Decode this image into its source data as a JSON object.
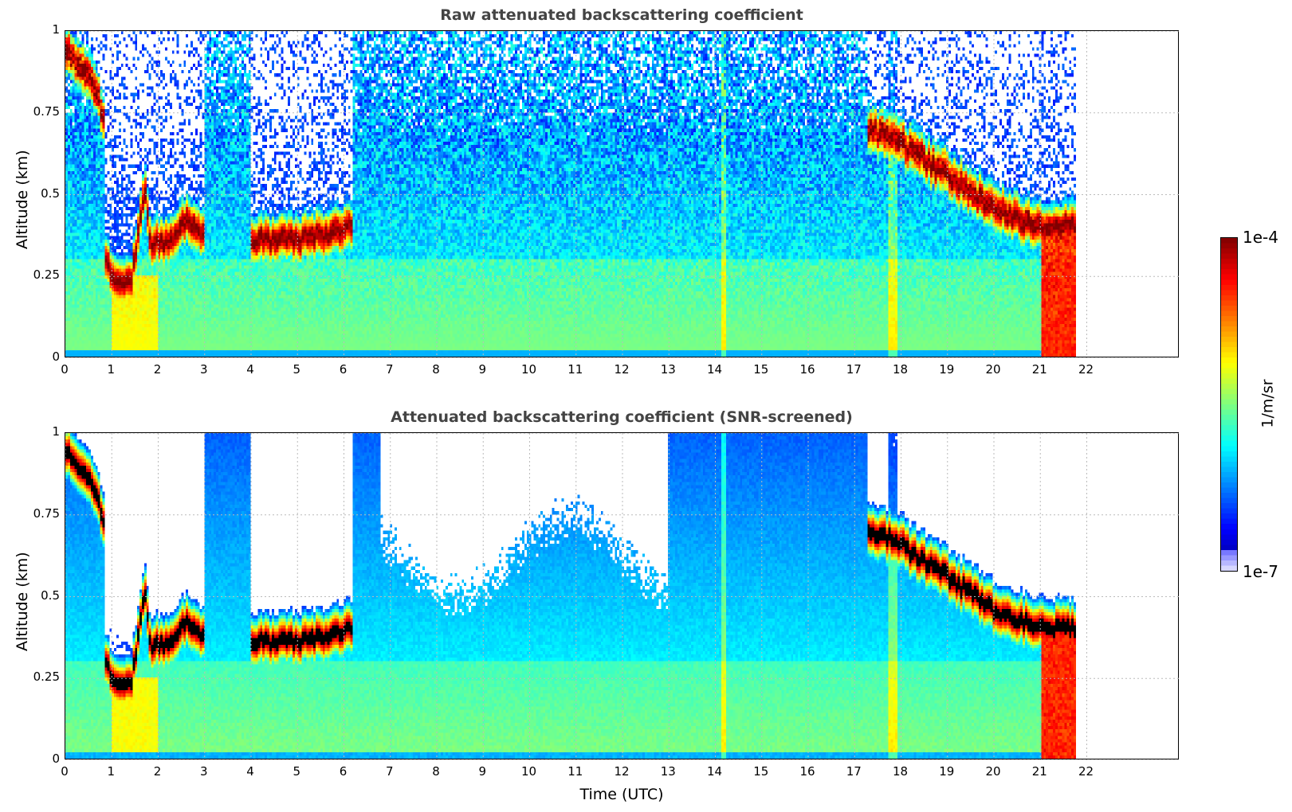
{
  "chart_data": {
    "type": "heatmap",
    "xlabel": "Time (UTC)",
    "ylabel": "Altitude (km)",
    "xlim": [
      0,
      24
    ],
    "ylim": [
      0,
      1
    ],
    "xticks": [
      "0",
      "1",
      "2",
      "3",
      "4",
      "5",
      "6",
      "7",
      "8",
      "9",
      "10",
      "11",
      "12",
      "13",
      "14",
      "15",
      "16",
      "17",
      "18",
      "19",
      "20",
      "21",
      "22"
    ],
    "yticks": [
      "0",
      "0.25",
      "0.5",
      "0.75",
      "1"
    ],
    "grid": true,
    "colorbar": {
      "label": "1/m/sr",
      "min_label": "1e-7",
      "max_label": "1e-4",
      "scale": "log",
      "colormap": "jet"
    },
    "data_end_hour": 21.8,
    "panels": [
      {
        "title": "Raw attenuated backscattering coefficient",
        "screened": false
      },
      {
        "title": "Attenuated backscattering coefficient (SNR-screened)",
        "screened": true
      }
    ],
    "cloud_layers_km": [
      {
        "name": "early-high-layer",
        "points": [
          [
            0,
            0.95
          ],
          [
            0.4,
            0.88
          ],
          [
            0.7,
            0.8
          ],
          [
            0.85,
            0.7
          ]
        ]
      },
      {
        "name": "morning-low-layer",
        "points": [
          [
            0.85,
            0.3
          ],
          [
            1.0,
            0.25
          ],
          [
            1.4,
            0.22
          ],
          [
            1.55,
            0.35
          ],
          [
            1.7,
            0.52
          ],
          [
            1.85,
            0.35
          ],
          [
            2.2,
            0.35
          ],
          [
            2.6,
            0.42
          ],
          [
            3.0,
            0.38
          ]
        ]
      },
      {
        "name": "midmorning-layer",
        "points": [
          [
            4.0,
            0.36
          ],
          [
            5.0,
            0.36
          ],
          [
            5.8,
            0.38
          ],
          [
            6.2,
            0.4
          ]
        ]
      },
      {
        "name": "evening-descending-layer",
        "points": [
          [
            17.3,
            0.7
          ],
          [
            18,
            0.66
          ],
          [
            19,
            0.56
          ],
          [
            20,
            0.46
          ],
          [
            21,
            0.4
          ],
          [
            21.8,
            0.4
          ]
        ]
      }
    ],
    "precipitation": {
      "start_hour": 21.05,
      "end_hour": 21.8,
      "top_km": 0.4
    }
  }
}
